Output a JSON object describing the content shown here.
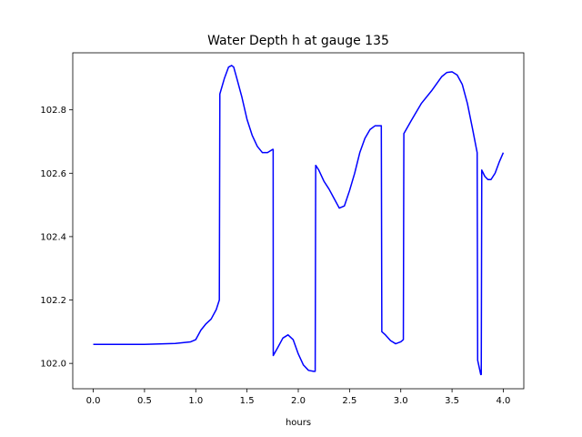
{
  "chart_data": {
    "type": "line",
    "title": "Water Depth h at gauge 135",
    "xlabel": "hours",
    "ylabel": "",
    "xlim": [
      -0.2,
      4.2
    ],
    "ylim": [
      101.92,
      102.98
    ],
    "xticks": [
      0.0,
      0.5,
      1.0,
      1.5,
      2.0,
      2.5,
      3.0,
      3.5,
      4.0
    ],
    "xtick_labels": [
      "0.0",
      "0.5",
      "1.0",
      "1.5",
      "2.0",
      "2.5",
      "3.0",
      "3.5",
      "4.0"
    ],
    "yticks": [
      102.0,
      102.2,
      102.4,
      102.6,
      102.8
    ],
    "ytick_labels": [
      "102.0",
      "102.2",
      "102.4",
      "102.6",
      "102.8"
    ],
    "grid": false,
    "legend": null,
    "series": [
      {
        "color": "#0000ff",
        "x": [
          0.0,
          0.5,
          0.8,
          0.95,
          1.0,
          1.05,
          1.1,
          1.15,
          1.2,
          1.23,
          1.235,
          1.28,
          1.32,
          1.35,
          1.37,
          1.4,
          1.45,
          1.5,
          1.55,
          1.6,
          1.65,
          1.7,
          1.75,
          1.755,
          1.756,
          1.8,
          1.85,
          1.9,
          1.95,
          2.0,
          2.05,
          2.1,
          2.15,
          2.165,
          2.17,
          2.2,
          2.25,
          2.3,
          2.35,
          2.4,
          2.45,
          2.5,
          2.55,
          2.6,
          2.65,
          2.7,
          2.75,
          2.8,
          2.81,
          2.815,
          2.85,
          2.9,
          2.95,
          3.0,
          3.025,
          3.03,
          3.1,
          3.2,
          3.3,
          3.4,
          3.45,
          3.5,
          3.55,
          3.6,
          3.65,
          3.7,
          3.745,
          3.75,
          3.78,
          3.785,
          3.79,
          3.82,
          3.85,
          3.88,
          3.92,
          3.96,
          4.0
        ],
        "y": [
          102.06,
          102.06,
          102.063,
          102.068,
          102.075,
          102.105,
          102.125,
          102.14,
          102.17,
          102.2,
          102.85,
          102.9,
          102.935,
          102.94,
          102.935,
          102.9,
          102.84,
          102.77,
          102.72,
          102.685,
          102.665,
          102.665,
          102.675,
          102.675,
          102.025,
          102.05,
          102.08,
          102.09,
          102.075,
          102.03,
          101.995,
          101.978,
          101.975,
          101.975,
          102.625,
          102.61,
          102.575,
          102.55,
          102.52,
          102.49,
          102.497,
          102.545,
          102.6,
          102.665,
          102.71,
          102.738,
          102.75,
          102.75,
          102.75,
          102.1,
          102.09,
          102.072,
          102.062,
          102.068,
          102.075,
          102.725,
          102.765,
          102.82,
          102.86,
          102.905,
          102.918,
          102.92,
          102.91,
          102.88,
          102.82,
          102.74,
          102.665,
          102.01,
          101.965,
          101.965,
          102.61,
          102.59,
          102.58,
          102.58,
          102.6,
          102.635,
          102.665
        ]
      }
    ]
  }
}
